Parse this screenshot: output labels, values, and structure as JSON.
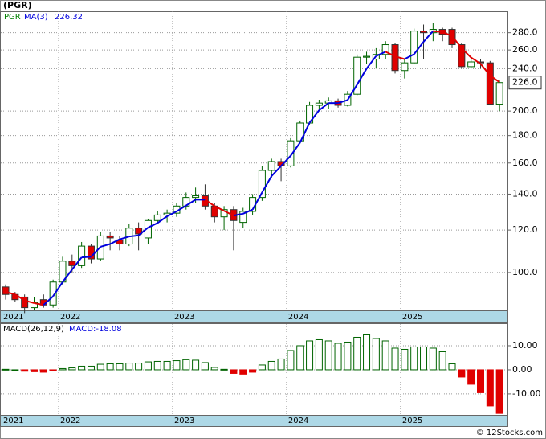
{
  "chart_data": {
    "type": "candlestick",
    "title": "(PGR)",
    "legend": {
      "ticker": "PGR",
      "ma_name": "MA(3)",
      "ma_value": "226.32"
    },
    "last_price_label": "226.0",
    "macd_name": "MACD(26,12,9)",
    "macd_label": "MACD:-18.08",
    "copyright": "© 12Stocks.com",
    "log_scale": true,
    "grid": true,
    "categories": [
      null,
      null,
      null,
      null,
      null,
      null,
      "2022",
      null,
      null,
      null,
      null,
      null,
      null,
      null,
      null,
      null,
      null,
      null,
      "2023",
      null,
      null,
      null,
      null,
      null,
      null,
      null,
      null,
      null,
      null,
      null,
      "2024",
      null,
      null,
      null,
      null,
      null,
      null,
      null,
      null,
      null,
      null,
      null,
      "2025",
      null,
      null,
      null,
      null,
      null,
      null,
      null,
      null,
      null,
      null
    ],
    "first_label": "2021",
    "open": [
      94,
      91,
      90,
      86,
      89,
      87,
      96,
      105,
      103,
      112,
      106,
      117,
      115,
      113,
      121,
      116,
      125,
      128,
      129,
      133,
      138,
      139,
      133,
      127,
      131,
      124,
      130,
      138,
      155,
      161,
      158,
      176,
      190,
      205,
      207,
      209,
      205,
      215,
      252,
      250,
      255,
      266,
      238,
      246,
      282,
      280,
      284,
      284,
      266,
      242,
      247,
      246,
      206
    ],
    "high": [
      95,
      92,
      91,
      90,
      91,
      97,
      107,
      108,
      114,
      113,
      119,
      119,
      117,
      123,
      124,
      126,
      130,
      131,
      135,
      141,
      144,
      146,
      135,
      133,
      133,
      132,
      140,
      158,
      163,
      163,
      178,
      192,
      208,
      210,
      212,
      211,
      218,
      255,
      258,
      262,
      270,
      268,
      250,
      285,
      290,
      292,
      286,
      286,
      268,
      250,
      250,
      248,
      228
    ],
    "low": [
      89,
      88,
      84,
      85,
      86,
      86,
      95,
      100,
      102,
      104,
      105,
      110,
      110,
      112,
      110,
      113,
      123,
      124,
      127,
      131,
      135,
      131,
      124,
      120,
      110,
      121,
      128,
      136,
      150,
      148,
      157,
      174,
      189,
      200,
      202,
      203,
      204,
      214,
      245,
      240,
      250,
      235,
      230,
      245,
      250,
      270,
      270,
      262,
      240,
      240,
      240,
      205,
      200
    ],
    "close": [
      91,
      89,
      86,
      88,
      87,
      96,
      105,
      103,
      112,
      106,
      117,
      116,
      113,
      121,
      118,
      125,
      128,
      129,
      133,
      138,
      139,
      133,
      127,
      131,
      125,
      130,
      138,
      155,
      161,
      158,
      176,
      190,
      205,
      207,
      209,
      205,
      215,
      252,
      253,
      255,
      266,
      238,
      246,
      282,
      280,
      284,
      278,
      266,
      242,
      247,
      246,
      206,
      226
    ],
    "ma": [
      92,
      91,
      88.7,
      87.7,
      87,
      90.3,
      96,
      101.3,
      106.7,
      107,
      111.7,
      113,
      115.3,
      116.7,
      117.3,
      121.3,
      123.7,
      127.3,
      130,
      133.3,
      136.7,
      136.7,
      133,
      130.3,
      127.7,
      128.7,
      131,
      141,
      151.3,
      158,
      165,
      174.7,
      190.3,
      200.7,
      207,
      207,
      209.7,
      224,
      240,
      253.3,
      258,
      253,
      250,
      255.3,
      269.3,
      282,
      280.7,
      276,
      262,
      251.7,
      245,
      233,
      226.32
    ],
    "macd": [
      0.2,
      0,
      -0.6,
      -0.8,
      -1.0,
      -0.5,
      0.5,
      0.8,
      1.5,
      1.5,
      2.3,
      2.5,
      2.5,
      2.8,
      2.8,
      3.3,
      3.5,
      3.5,
      3.8,
      4.2,
      4.0,
      3.0,
      1.0,
      0.2,
      -1.5,
      -1.8,
      -1.0,
      2.0,
      3.5,
      4.5,
      8.0,
      10.0,
      12.0,
      12.5,
      12.0,
      11.0,
      11.5,
      13.5,
      14.5,
      13.0,
      12.0,
      9.0,
      8.5,
      9.5,
      9.5,
      9.0,
      7.5,
      2.5,
      -3.0,
      -6.0,
      -9.5,
      -15.0,
      -18.08
    ],
    "up_color": "#006400",
    "down_color": "#e00000",
    "ma_color": "#0000dd",
    "ma_down_color": "#e00000",
    "ylim": [
      85,
      307
    ],
    "yticks": [
      {
        "value": 100,
        "label": "100.0"
      },
      {
        "value": 120,
        "label": "120.0"
      },
      {
        "value": 140,
        "label": "140.0"
      },
      {
        "value": 160,
        "label": "160.0"
      },
      {
        "value": 180,
        "label": "180.0"
      },
      {
        "value": 200,
        "label": "200.0"
      },
      {
        "value": 240,
        "label": "240.0"
      },
      {
        "value": 260,
        "label": "260.0"
      },
      {
        "value": 280,
        "label": "280.0"
      }
    ],
    "y2lim": [
      -18.7,
      19
    ],
    "y2ticks": [
      {
        "value": 10,
        "label": "10.00"
      },
      {
        "value": 0,
        "label": "0.00"
      },
      {
        "value": -10,
        "label": "-10.00"
      }
    ]
  }
}
